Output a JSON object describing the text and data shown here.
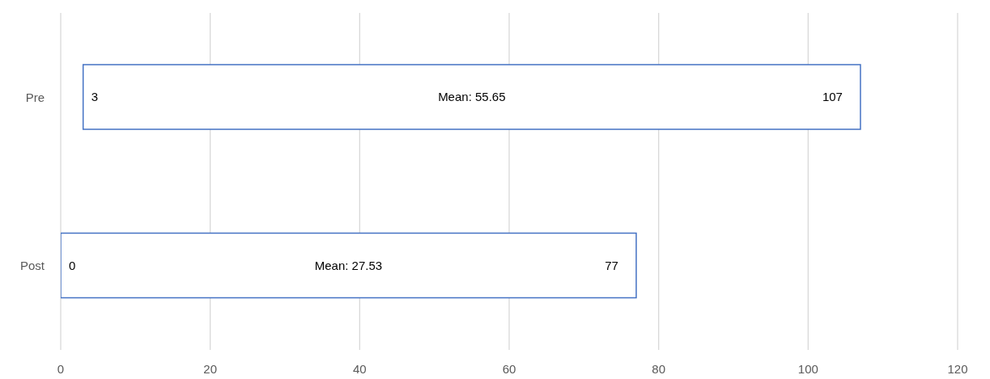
{
  "chart_data": {
    "type": "bar",
    "orientation": "horizontal",
    "categories": [
      "Pre",
      "Post"
    ],
    "base": [
      3,
      0
    ],
    "values": [
      104,
      77
    ],
    "color": "#4472c4",
    "xlim": [
      0,
      120
    ],
    "xticks": [
      0,
      20,
      40,
      60,
      80,
      100,
      120
    ],
    "grid": "x",
    "annotations": [
      {
        "text": "3",
        "x": 3,
        "y": "Pre"
      },
      "Mean: 55.65",
      {
        "text": "107",
        "x": 107,
        "y": "Pre"
      },
      {
        "text": "0",
        "x": 0,
        "y": "Post"
      },
      "Mean: 27.53",
      {
        "text": "77",
        "x": 77,
        "y": "Post"
      }
    ]
  }
}
